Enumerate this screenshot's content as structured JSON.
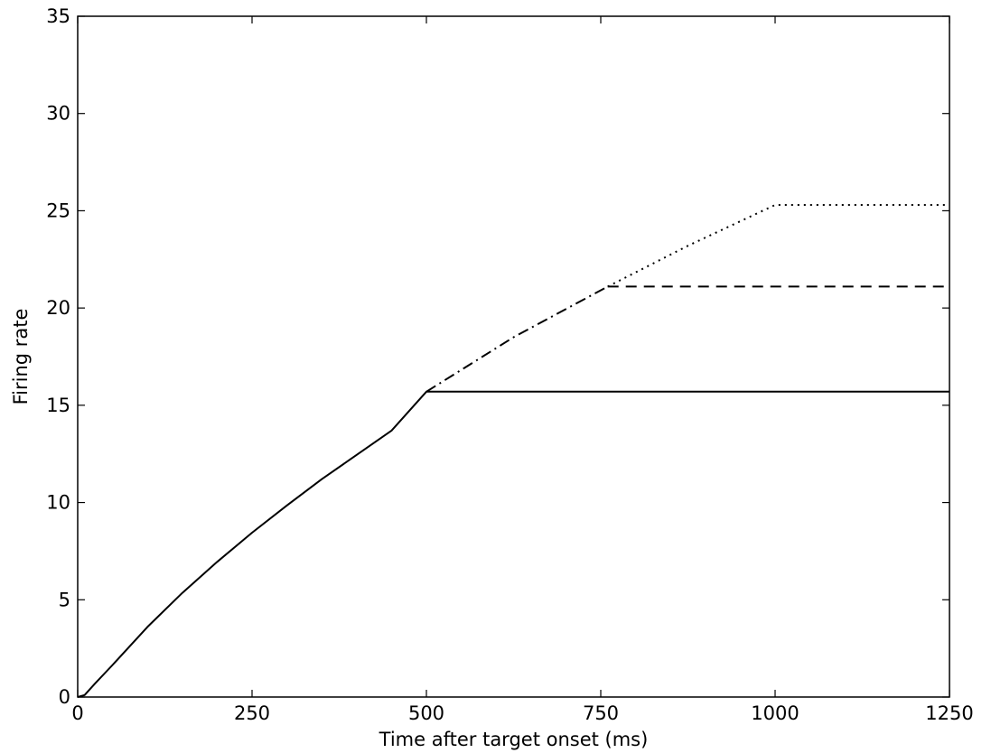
{
  "chart_data": {
    "type": "line",
    "title": "",
    "xlabel": "Time after target onset (ms)",
    "ylabel": "Firing rate",
    "xlim": [
      0,
      1250
    ],
    "ylim": [
      0,
      35
    ],
    "x_ticks": [
      0,
      250,
      500,
      750,
      1000,
      1250
    ],
    "y_ticks": [
      0,
      5,
      10,
      15,
      20,
      25,
      30,
      35
    ],
    "grid": false,
    "legend": "none",
    "series": [
      {
        "line_style": "solid",
        "color": "#000000",
        "x": [
          0,
          10,
          25,
          50,
          100,
          150,
          200,
          250,
          300,
          350,
          400,
          450,
          500,
          510,
          1250
        ],
        "y": [
          0,
          0.1,
          0.7,
          1.65,
          3.6,
          5.35,
          6.95,
          8.45,
          9.85,
          11.2,
          12.45,
          13.7,
          15.7,
          15.7,
          15.7
        ]
      },
      {
        "line_style": "dashdot",
        "color": "#000000",
        "x": [
          500,
          625,
          760
        ],
        "y": [
          15.7,
          18.5,
          21.1
        ]
      },
      {
        "line_style": "dashed",
        "color": "#000000",
        "x": [
          760,
          1250
        ],
        "y": [
          21.1,
          21.1
        ]
      },
      {
        "line_style": "dotted",
        "color": "#000000",
        "x": [
          760,
          875,
          1000,
          1250
        ],
        "y": [
          21.1,
          23.2,
          25.3,
          25.3
        ]
      }
    ]
  }
}
